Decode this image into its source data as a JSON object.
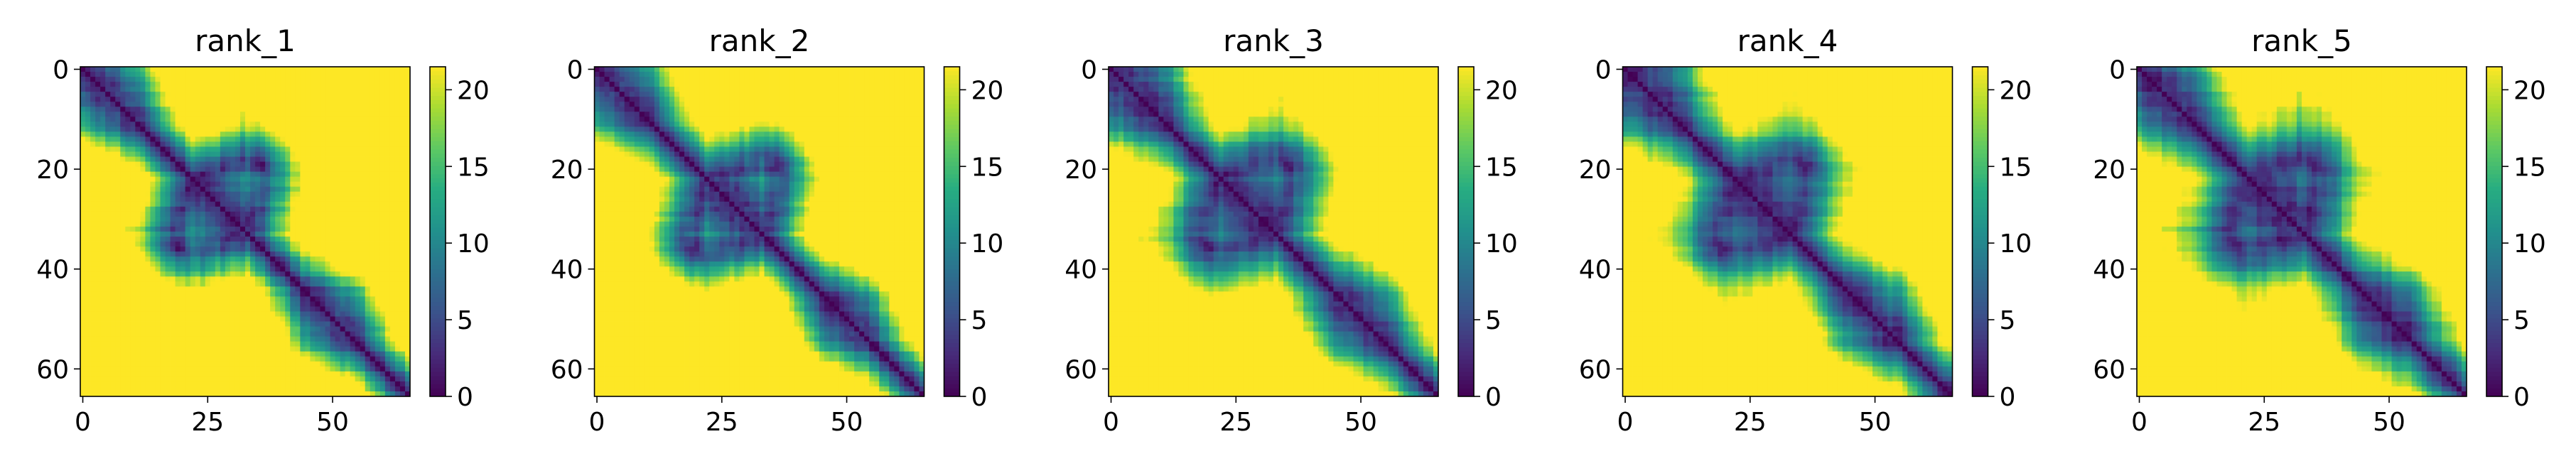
{
  "chart_data": [
    {
      "type": "heatmap",
      "title": "rank_1",
      "size": 66,
      "x_ticks": [
        0,
        25,
        50
      ],
      "y_ticks": [
        0,
        20,
        40,
        60
      ],
      "colorbar": {
        "min": 0,
        "max": 21.5,
        "ticks": [
          0,
          5,
          10,
          15,
          20
        ],
        "colormap": "viridis"
      },
      "seed": 11,
      "contact_strength": 1.0
    },
    {
      "type": "heatmap",
      "title": "rank_2",
      "size": 66,
      "x_ticks": [
        0,
        25,
        50
      ],
      "y_ticks": [
        0,
        20,
        40,
        60
      ],
      "colorbar": {
        "min": 0,
        "max": 21.5,
        "ticks": [
          0,
          5,
          10,
          15,
          20
        ],
        "colormap": "viridis"
      },
      "seed": 23,
      "contact_strength": 1.0
    },
    {
      "type": "heatmap",
      "title": "rank_3",
      "size": 66,
      "x_ticks": [
        0,
        25,
        50
      ],
      "y_ticks": [
        0,
        20,
        40,
        60
      ],
      "colorbar": {
        "min": 0,
        "max": 21.5,
        "ticks": [
          0,
          5,
          10,
          15,
          20
        ],
        "colormap": "viridis"
      },
      "seed": 37,
      "contact_strength": 0.85
    },
    {
      "type": "heatmap",
      "title": "rank_4",
      "size": 66,
      "x_ticks": [
        0,
        25,
        50
      ],
      "y_ticks": [
        0,
        20,
        40,
        60
      ],
      "colorbar": {
        "min": 0,
        "max": 21.5,
        "ticks": [
          0,
          5,
          10,
          15,
          20
        ],
        "colormap": "viridis"
      },
      "seed": 41,
      "contact_strength": 0.85
    },
    {
      "type": "heatmap",
      "title": "rank_5",
      "size": 66,
      "x_ticks": [
        0,
        25,
        50
      ],
      "y_ticks": [
        0,
        20,
        40,
        60
      ],
      "colorbar": {
        "min": 0,
        "max": 21.5,
        "ticks": [
          0,
          5,
          10,
          15,
          20
        ],
        "colormap": "viridis"
      },
      "seed": 53,
      "contact_strength": 0.8
    }
  ]
}
